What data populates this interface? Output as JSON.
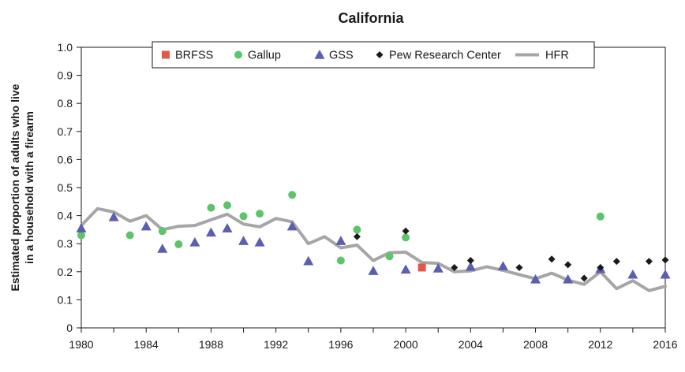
{
  "chart_data": {
    "type": "scatter",
    "title": "California",
    "ylabel": "Estimated proportion of adults who live in a household with a firearm",
    "ylabel_lines": [
      "Estimated proportion of adults who live",
      "in a household with a firearm"
    ],
    "xlabel": "",
    "xlim": [
      1980,
      2016
    ],
    "ylim": [
      0,
      1.0
    ],
    "x_ticks": [
      1980,
      1984,
      1988,
      1992,
      1996,
      2000,
      2004,
      2008,
      2012,
      2016
    ],
    "y_ticks": [
      "0",
      "0.1",
      "0.2",
      "0.3",
      "0.4",
      "0.5",
      "0.6",
      "0.7",
      "0.8",
      "0.9",
      "1.0"
    ],
    "grid": false,
    "legend_position": "top-center",
    "series": [
      {
        "name": "BRFSS",
        "marker": "square",
        "color": "#e05a4a",
        "x": [
          2001
        ],
        "y": [
          0.215
        ]
      },
      {
        "name": "Gallup",
        "marker": "circle",
        "color": "#5cc46a",
        "x": [
          1980,
          1983,
          1985,
          1986,
          1988,
          1989,
          1990,
          1991,
          1993,
          1996,
          1997,
          1999,
          2000,
          2012
        ],
        "y": [
          0.33,
          0.33,
          0.345,
          0.298,
          0.428,
          0.437,
          0.398,
          0.407,
          0.474,
          0.24,
          0.35,
          0.255,
          0.322,
          0.397
        ]
      },
      {
        "name": "GSS",
        "marker": "triangle",
        "color": "#5a5fb0",
        "x": [
          1980,
          1982,
          1984,
          1985,
          1987,
          1988,
          1989,
          1990,
          1991,
          1993,
          1994,
          1996,
          1998,
          2000,
          2002,
          2004,
          2006,
          2008,
          2010,
          2012,
          2014,
          2016
        ],
        "y": [
          0.355,
          0.395,
          0.362,
          0.282,
          0.305,
          0.34,
          0.355,
          0.31,
          0.305,
          0.362,
          0.238,
          0.31,
          0.203,
          0.208,
          0.212,
          0.218,
          0.22,
          0.173,
          0.173,
          0.21,
          0.19,
          0.19
        ]
      },
      {
        "name": "Pew Research Center",
        "marker": "diamond",
        "color": "#1a1a1a",
        "x": [
          1997,
          2000,
          2003,
          2004,
          2007,
          2009,
          2010,
          2011,
          2012,
          2013,
          2015,
          2016
        ],
        "y": [
          0.325,
          0.345,
          0.215,
          0.24,
          0.215,
          0.245,
          0.225,
          0.177,
          0.215,
          0.237,
          0.237,
          0.242
        ]
      },
      {
        "name": "HFR",
        "marker": "line",
        "color": "#a6a6a6",
        "x": [
          1980,
          1981,
          1982,
          1983,
          1984,
          1985,
          1986,
          1987,
          1988,
          1989,
          1990,
          1991,
          1992,
          1993,
          1994,
          1995,
          1996,
          1997,
          1998,
          1999,
          2000,
          2001,
          2002,
          2003,
          2004,
          2005,
          2006,
          2007,
          2008,
          2009,
          2010,
          2011,
          2012,
          2013,
          2014,
          2015,
          2016
        ],
        "y": [
          0.365,
          0.425,
          0.413,
          0.38,
          0.4,
          0.35,
          0.362,
          0.365,
          0.385,
          0.405,
          0.37,
          0.36,
          0.39,
          0.378,
          0.3,
          0.325,
          0.285,
          0.295,
          0.24,
          0.268,
          0.27,
          0.233,
          0.23,
          0.2,
          0.203,
          0.218,
          0.205,
          0.19,
          0.175,
          0.195,
          0.17,
          0.155,
          0.2,
          0.14,
          0.168,
          0.133,
          0.148
        ]
      }
    ]
  }
}
